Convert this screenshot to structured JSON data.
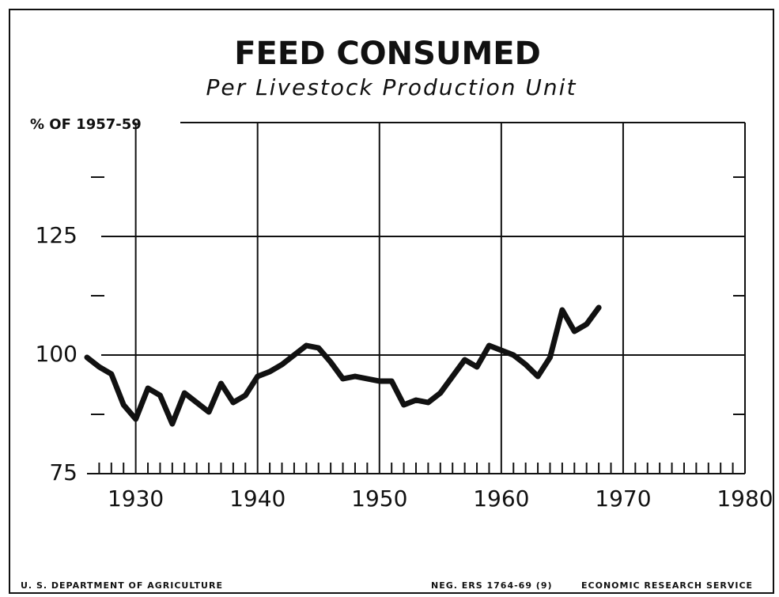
{
  "chart_data": {
    "type": "line",
    "title": "FEED CONSUMED",
    "subtitle": "Per Livestock Production Unit",
    "y_label": "% OF 1957-59",
    "x": [
      1926,
      1927,
      1928,
      1929,
      1930,
      1931,
      1932,
      1933,
      1934,
      1935,
      1936,
      1937,
      1938,
      1939,
      1940,
      1941,
      1942,
      1943,
      1944,
      1945,
      1946,
      1947,
      1948,
      1949,
      1950,
      1951,
      1952,
      1953,
      1954,
      1955,
      1956,
      1957,
      1958,
      1959,
      1960,
      1961,
      1962,
      1963,
      1964,
      1965,
      1966,
      1967,
      1968
    ],
    "values": [
      99.5,
      97.5,
      96,
      89.5,
      86.5,
      93,
      91.5,
      85.5,
      92,
      90,
      88,
      94,
      90,
      91.5,
      95.5,
      96.5,
      98,
      100,
      102,
      101.5,
      98.5,
      95,
      95.5,
      95,
      94.5,
      94.5,
      89.5,
      90.5,
      90,
      92,
      95.5,
      99,
      97.5,
      102,
      101,
      100,
      98,
      95.5,
      99.5,
      109.5,
      105,
      106.5,
      110
    ],
    "color": "#111111",
    "xlim": [
      1926,
      1980
    ],
    "xticks": [
      1930,
      1940,
      1950,
      1960,
      1970,
      1980
    ],
    "minor_xticks": [
      1927,
      1928,
      1929,
      1931,
      1932,
      1933,
      1934,
      1935,
      1936,
      1937,
      1938,
      1939,
      1941,
      1942,
      1943,
      1944,
      1945,
      1946,
      1947,
      1948,
      1949,
      1951,
      1952,
      1953,
      1954,
      1955,
      1956,
      1957,
      1958,
      1959,
      1961,
      1962,
      1963,
      1964,
      1965,
      1966,
      1967,
      1968,
      1969,
      1971,
      1972,
      1973,
      1974,
      1975,
      1976,
      1977,
      1978,
      1979
    ],
    "ylim": [
      75,
      150
    ],
    "yticks": [
      75,
      100,
      125
    ],
    "minor_yticks": [
      87.5,
      112.5,
      137.5
    ],
    "grid": true,
    "footer_left": "U. S. DEPARTMENT OF AGRICULTURE",
    "footer_mid": "NEG. ERS 1764-69 (9)",
    "footer_right": "ECONOMIC RESEARCH SERVICE"
  }
}
